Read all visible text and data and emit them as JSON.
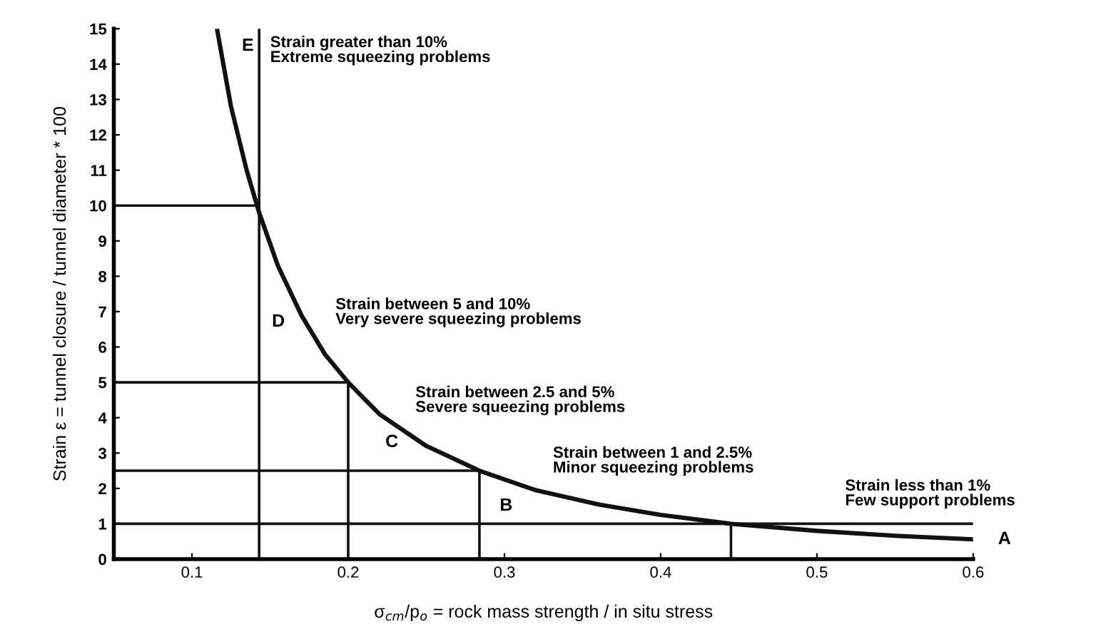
{
  "chart_data": {
    "type": "line",
    "xlabel": "σ$_{cm}$/p$_{o}$ = rock mass strength / in situ stress",
    "ylabel": "Strain ε = tunnel closure / tunnel diameter * 100",
    "xlim": [
      0.05,
      0.6
    ],
    "xticks": [
      0.1,
      0.2,
      0.3,
      0.4,
      0.5,
      0.6
    ],
    "ylim": [
      0,
      15
    ],
    "yticks": [
      0,
      1,
      2,
      3,
      4,
      5,
      6,
      7,
      8,
      9,
      10,
      11,
      12,
      13,
      14,
      15
    ],
    "grid": false,
    "legend": false,
    "marker": "none",
    "line_style": "solid",
    "series": [
      {
        "color": "#111111",
        "x": [
          0.116,
          0.125,
          0.135,
          0.143,
          0.155,
          0.17,
          0.185,
          0.2,
          0.22,
          0.25,
          0.284,
          0.32,
          0.36,
          0.4,
          0.445,
          0.5,
          0.55,
          0.6
        ],
        "values": [
          15,
          12.8,
          11,
          9.8,
          8.3,
          6.9,
          5.8,
          5,
          4.1,
          3.2,
          2.5,
          1.95,
          1.55,
          1.25,
          1.0,
          0.8,
          0.66,
          0.56
        ]
      },
      {
        "color": "#111111",
        "x": [
          0.05,
          0.143,
          0.143,
          0.143
        ],
        "values": [
          10,
          10,
          15,
          0
        ]
      },
      {
        "color": "#111111",
        "x": [
          0.05,
          0.2,
          0.2
        ],
        "values": [
          5,
          5,
          0
        ]
      },
      {
        "color": "#111111",
        "x": [
          0.05,
          0.284,
          0.284
        ],
        "values": [
          2.5,
          2.5,
          0
        ]
      },
      {
        "color": "#111111",
        "x": [
          0.05,
          0.6
        ],
        "values": [
          1,
          1
        ]
      },
      {
        "color": "#111111",
        "x": [
          0.445,
          0.445
        ],
        "values": [
          1,
          0
        ]
      }
    ],
    "annotations": [
      "E",
      "D",
      "C",
      "B",
      "A",
      "Strain greater than 10%\nExtreme squeezing problems",
      "Strain between 5 and 10%\nVery severe squeezing problems",
      "Strain between 2.5 and 5%\nSevere squeezing problems",
      "Strain between 1 and 2.5%\nMinor squeezing problems",
      "Strain less than 1%\nFew support problems"
    ]
  }
}
